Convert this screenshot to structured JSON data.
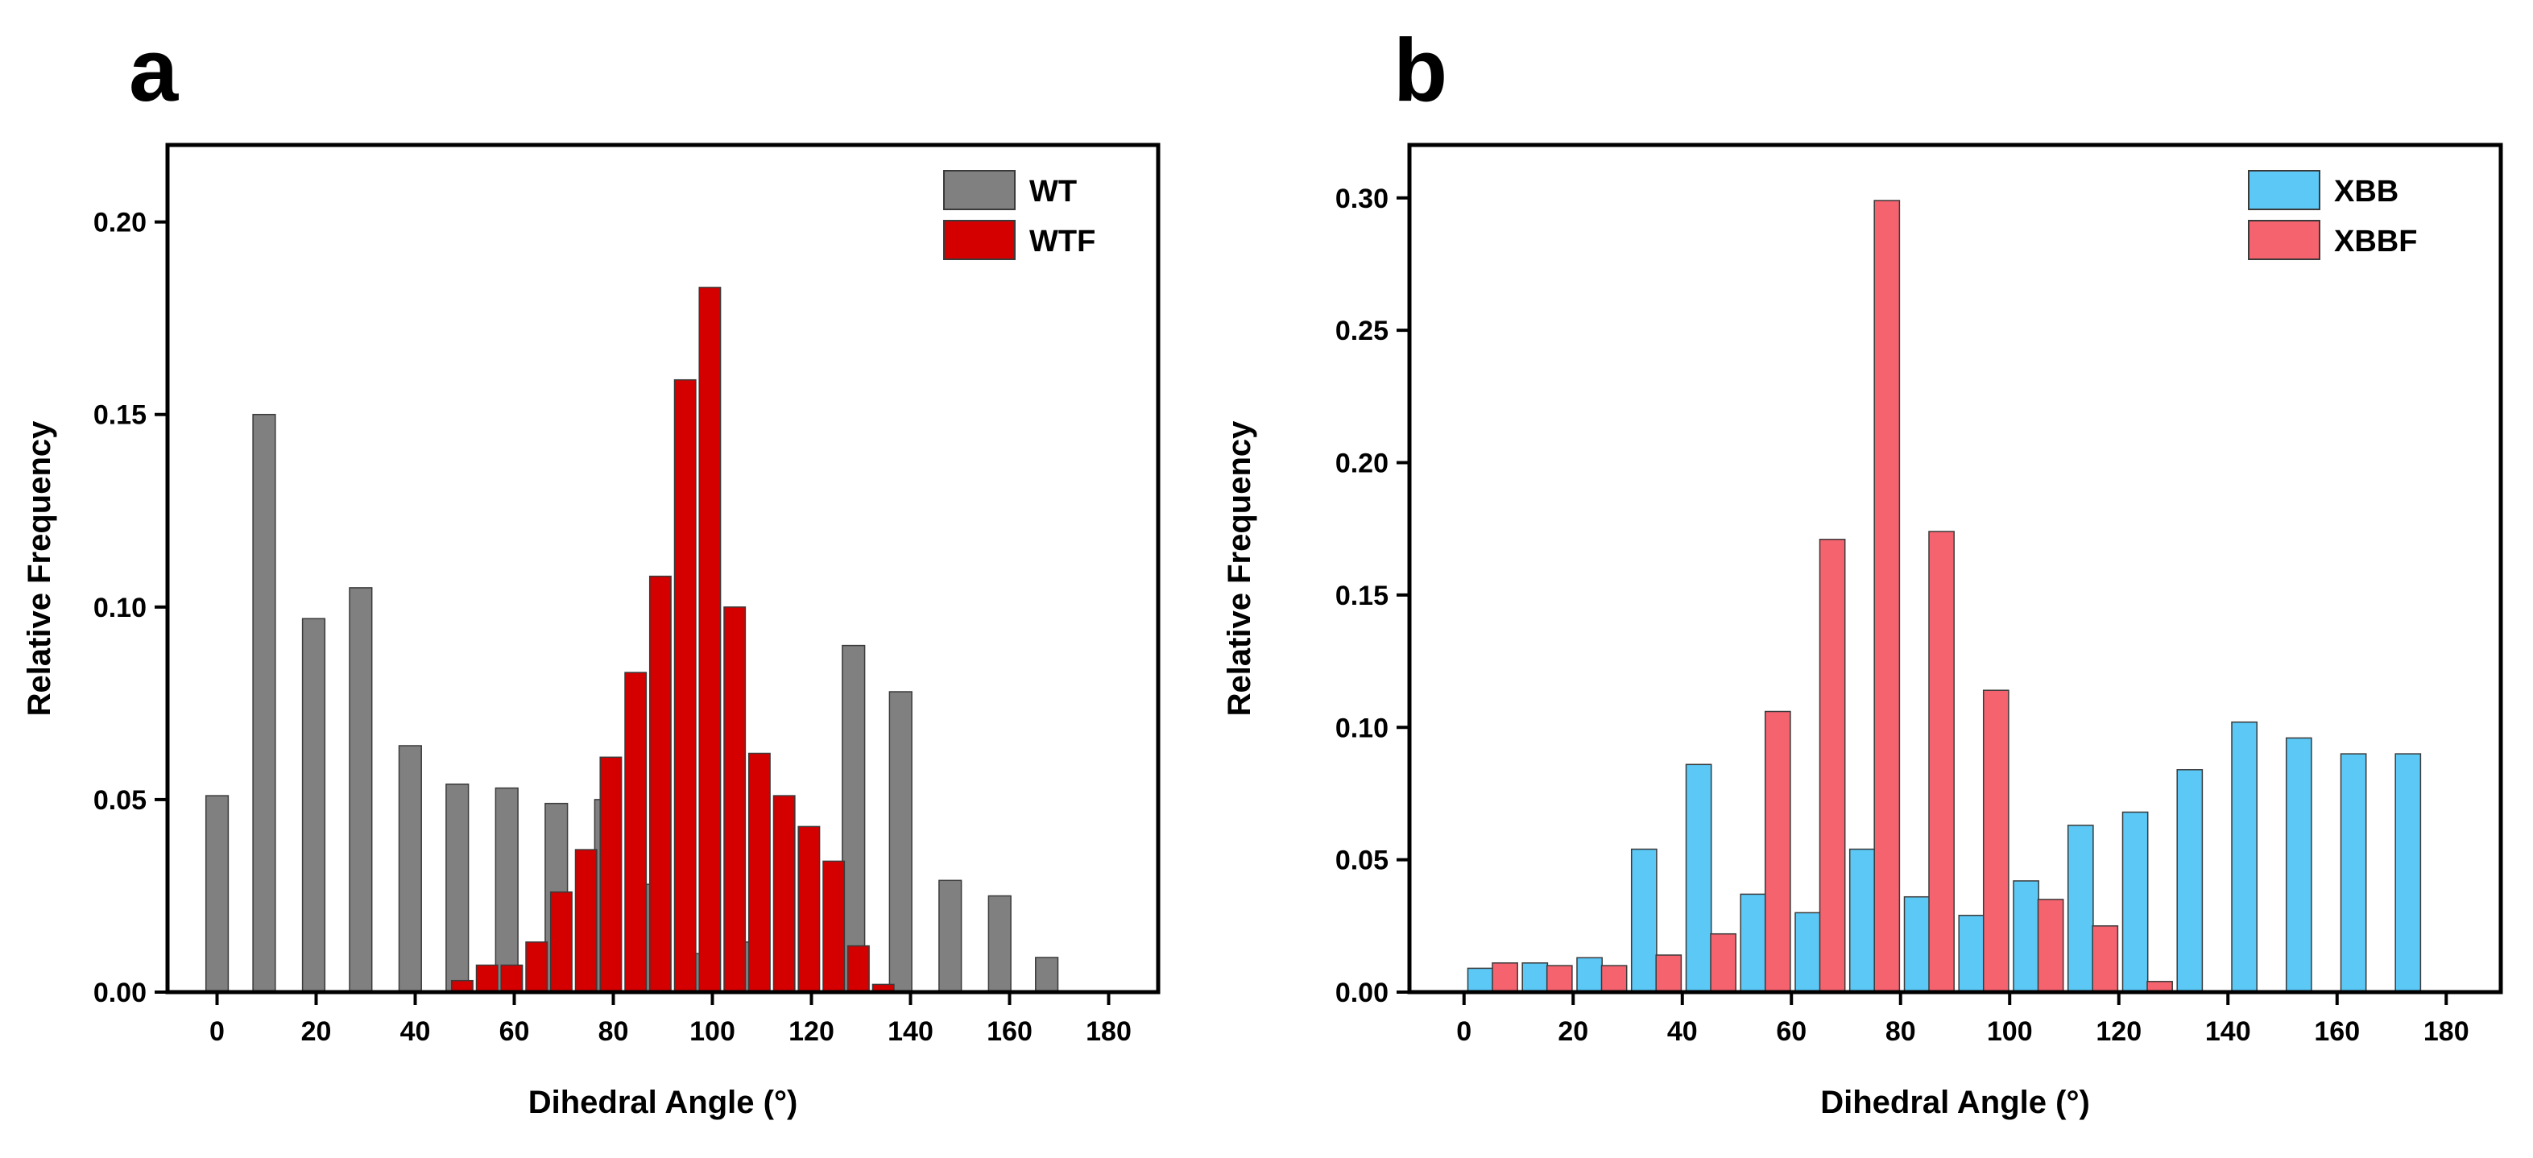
{
  "panels": [
    {
      "letter": "a"
    },
    {
      "letter": "b"
    }
  ],
  "chart_data": [
    {
      "type": "bar",
      "panel": "a",
      "xlabel": "Dihedral Angle (°)",
      "ylabel": "Relative Frequency",
      "xlim": [
        -10,
        190
      ],
      "ylim": [
        0,
        0.22
      ],
      "xticks": [
        0,
        20,
        40,
        60,
        80,
        100,
        120,
        140,
        160,
        180
      ],
      "xtick_labels": [
        "0",
        "20",
        "40",
        "60",
        "80",
        "100",
        "120",
        "140",
        "160",
        "180"
      ],
      "yticks": [
        0,
        0.05,
        0.1,
        0.15,
        0.2
      ],
      "ytick_labels": [
        "0.00",
        "0.05",
        "0.10",
        "0.15",
        "0.20"
      ],
      "legend_position": "top-right",
      "series": [
        {
          "name": "WT",
          "color": "#808080",
          "bar_width": 4.5,
          "x": [
            0,
            9.5,
            19.5,
            29,
            39,
            48.5,
            58.5,
            68.5,
            78.5,
            88,
            98,
            108,
            128.5,
            138,
            148,
            158,
            167.5
          ],
          "values": [
            0.051,
            0.15,
            0.097,
            0.105,
            0.064,
            0.054,
            0.053,
            0.049,
            0.05,
            0.028,
            0.01,
            0.013,
            0.09,
            0.078,
            0.029,
            0.025,
            0.009
          ]
        },
        {
          "name": "WTF",
          "color": "#d40000",
          "bar_width": 4.3,
          "x": [
            49.5,
            54.5,
            59.5,
            64.5,
            69.5,
            74.5,
            79.5,
            84.5,
            89.5,
            94.5,
            99.5,
            104.5,
            109.5,
            114.5,
            119.5,
            124.5,
            129.5,
            134.5
          ],
          "values": [
            0.003,
            0.007,
            0.007,
            0.013,
            0.026,
            0.037,
            0.061,
            0.083,
            0.108,
            0.159,
            0.183,
            0.1,
            0.062,
            0.051,
            0.043,
            0.034,
            0.012,
            0.002
          ]
        }
      ]
    },
    {
      "type": "bar",
      "panel": "b",
      "xlabel": "Dihedral Angle (°)",
      "ylabel": "Relative Frequency",
      "xlim": [
        -10,
        190
      ],
      "ylim": [
        0,
        0.32
      ],
      "xticks": [
        0,
        20,
        40,
        60,
        80,
        100,
        120,
        140,
        160,
        180
      ],
      "xtick_labels": [
        "0",
        "20",
        "40",
        "60",
        "80",
        "100",
        "120",
        "140",
        "160",
        "180"
      ],
      "yticks": [
        0,
        0.05,
        0.1,
        0.15,
        0.2,
        0.25,
        0.3
      ],
      "ytick_labels": [
        "0.00",
        "0.05",
        "0.10",
        "0.15",
        "0.20",
        "0.25",
        "0.30"
      ],
      "legend_position": "top-right",
      "series": [
        {
          "name": "XBB",
          "color": "#5bc8f5",
          "bar_width": 4.6,
          "x": [
            3,
            13,
            23,
            33,
            43,
            53,
            63,
            73,
            83,
            93,
            103,
            113,
            123,
            133,
            143,
            153,
            163,
            173
          ],
          "values": [
            0.009,
            0.011,
            0.013,
            0.054,
            0.086,
            0.037,
            0.03,
            0.054,
            0.036,
            0.029,
            0.042,
            0.063,
            0.068,
            0.084,
            0.102,
            0.096,
            0.09,
            0.09
          ]
        },
        {
          "name": "XBBF",
          "color": "#f4636e",
          "bar_width": 4.6,
          "x": [
            7.5,
            17.5,
            27.5,
            37.5,
            47.5,
            57.5,
            67.5,
            77.5,
            87.5,
            97.5,
            107.5,
            117.5,
            127.5
          ],
          "values": [
            0.011,
            0.01,
            0.01,
            0.014,
            0.022,
            0.106,
            0.171,
            0.299,
            0.174,
            0.114,
            0.035,
            0.025,
            0.004
          ]
        }
      ]
    }
  ]
}
